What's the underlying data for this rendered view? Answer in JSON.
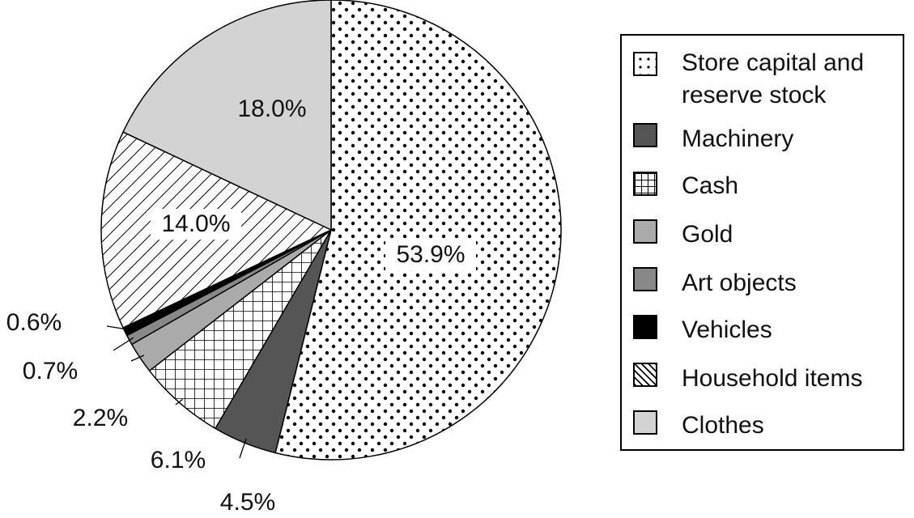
{
  "chart_data": {
    "type": "pie",
    "categories": [
      "Store capital and reserve stock",
      "Machinery",
      "Cash",
      "Gold",
      "Art objects",
      "Vehicles",
      "Household items",
      "Clothes"
    ],
    "values": [
      53.9,
      4.5,
      6.1,
      2.2,
      0.7,
      0.6,
      14.0,
      18.0
    ],
    "value_labels": [
      "53.9%",
      "4.5%",
      "6.1%",
      "2.2%",
      "0.7%",
      "0.6%",
      "14.0%",
      "18.0%"
    ],
    "patterns": [
      "dots",
      "dark-gray",
      "grid",
      "light-gray",
      "medium-gray",
      "black",
      "diagonal-hatch",
      "very-light-gray"
    ],
    "colors": [
      "#ffffff",
      "#555555",
      "#ffffff",
      "#aaaaaa",
      "#888888",
      "#000000",
      "#ffffff",
      "#d3d3d3"
    ],
    "start": "12 o'clock",
    "direction": "clockwise",
    "legend_position": "right"
  }
}
